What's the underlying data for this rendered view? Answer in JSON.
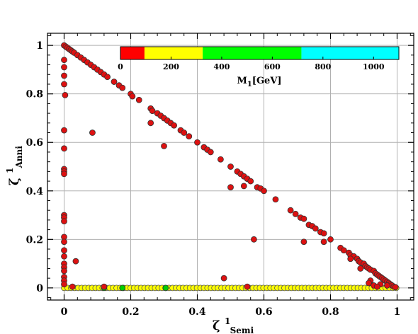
{
  "chart_data": {
    "type": "scatter",
    "xlabel": {
      "main": "ζ",
      "sup": "1",
      "sub": "Semi"
    },
    "ylabel": {
      "main": "ζ",
      "sup": "1",
      "sub": "Anni"
    },
    "xlim": [
      -0.05,
      1.05
    ],
    "ylim": [
      -0.05,
      1.05
    ],
    "xticks": [
      0,
      0.2,
      0.4,
      0.6,
      0.8,
      1
    ],
    "xtick_labels": [
      "0",
      "0.2",
      "0.4",
      "0.6",
      "0.8",
      "1"
    ],
    "yticks": [
      0,
      0.2,
      0.4,
      0.6,
      0.8,
      1
    ],
    "ytick_labels": [
      "0",
      "0.2",
      "0.4",
      "0.6",
      "0.8",
      "1"
    ],
    "grid": true,
    "colorbar": {
      "label": {
        "main": "M",
        "sub": "1",
        "suffix": "[GeV]"
      },
      "range": [
        0,
        1100
      ],
      "ticks": [
        0,
        200,
        400,
        600,
        800,
        1000
      ],
      "tick_labels": [
        "0",
        "200",
        "400",
        "600",
        "800",
        "1000"
      ],
      "bins": [
        {
          "from": 0,
          "to": 95,
          "color": "#ff0000"
        },
        {
          "from": 95,
          "to": 325,
          "color": "#ffff00"
        },
        {
          "from": 325,
          "to": 715,
          "color": "#00ff00"
        },
        {
          "from": 715,
          "to": 1100,
          "color": "#00ffff"
        }
      ]
    },
    "series": [
      {
        "marker_color": "#dd1111",
        "points": [
          [
            0,
            1
          ],
          [
            0.005,
            0.995
          ],
          [
            0.01,
            0.99
          ],
          [
            0.015,
            0.985
          ],
          [
            0.02,
            0.98
          ],
          [
            0.025,
            0.975
          ],
          [
            0.03,
            0.97
          ],
          [
            0.04,
            0.96
          ],
          [
            0.05,
            0.95
          ],
          [
            0.06,
            0.94
          ],
          [
            0.07,
            0.93
          ],
          [
            0.08,
            0.92
          ],
          [
            0.09,
            0.91
          ],
          [
            0.1,
            0.9
          ],
          [
            0.11,
            0.89
          ],
          [
            0.12,
            0.88
          ],
          [
            0.13,
            0.87
          ],
          [
            0.15,
            0.85
          ],
          [
            0.165,
            0.835
          ],
          [
            0.175,
            0.825
          ],
          [
            0.2,
            0.8
          ],
          [
            0.205,
            0.79
          ],
          [
            0.225,
            0.775
          ],
          [
            0.26,
            0.74
          ],
          [
            0.265,
            0.73
          ],
          [
            0.28,
            0.72
          ],
          [
            0.29,
            0.71
          ],
          [
            0.3,
            0.7
          ],
          [
            0.31,
            0.69
          ],
          [
            0.32,
            0.68
          ],
          [
            0.33,
            0.67
          ],
          [
            0.35,
            0.65
          ],
          [
            0.36,
            0.64
          ],
          [
            0.375,
            0.625
          ],
          [
            0.4,
            0.6
          ],
          [
            0.42,
            0.58
          ],
          [
            0.43,
            0.57
          ],
          [
            0.44,
            0.56
          ],
          [
            0.47,
            0.53
          ],
          [
            0.5,
            0.5
          ],
          [
            0.52,
            0.48
          ],
          [
            0.53,
            0.47
          ],
          [
            0.54,
            0.46
          ],
          [
            0.55,
            0.45
          ],
          [
            0.56,
            0.44
          ],
          [
            0.58,
            0.415
          ],
          [
            0.59,
            0.41
          ],
          [
            0.6,
            0.4
          ],
          [
            0.635,
            0.365
          ],
          [
            0.68,
            0.32
          ],
          [
            0.695,
            0.305
          ],
          [
            0.71,
            0.29
          ],
          [
            0.72,
            0.285
          ],
          [
            0.735,
            0.26
          ],
          [
            0.745,
            0.255
          ],
          [
            0.755,
            0.245
          ],
          [
            0.77,
            0.23
          ],
          [
            0.78,
            0.225
          ],
          [
            0.8,
            0.2
          ],
          [
            0.83,
            0.165
          ],
          [
            0.84,
            0.155
          ],
          [
            0.855,
            0.145
          ],
          [
            0.86,
            0.135
          ],
          [
            0.87,
            0.13
          ],
          [
            0.88,
            0.12
          ],
          [
            0.885,
            0.11
          ],
          [
            0.89,
            0.105
          ],
          [
            0.9,
            0.1
          ],
          [
            0.905,
            0.09
          ],
          [
            0.91,
            0.085
          ],
          [
            0.915,
            0.08
          ],
          [
            0.92,
            0.075
          ],
          [
            0.93,
            0.07
          ],
          [
            0.935,
            0.06
          ],
          [
            0.94,
            0.055
          ],
          [
            0.945,
            0.05
          ],
          [
            0.95,
            0.045
          ],
          [
            0.955,
            0.04
          ],
          [
            0.96,
            0.035
          ],
          [
            0.965,
            0.03
          ],
          [
            0.97,
            0.025
          ],
          [
            0.975,
            0.02
          ],
          [
            0.98,
            0.015
          ],
          [
            0.985,
            0.01
          ],
          [
            0.99,
            0.005
          ],
          [
            0.995,
            0.003
          ],
          [
            0,
            0.94
          ],
          [
            0,
            0.91
          ],
          [
            0,
            0.875
          ],
          [
            0,
            0.84
          ],
          [
            0.003,
            0.795
          ],
          [
            0,
            0.65
          ],
          [
            0,
            0.575
          ],
          [
            0,
            0.49
          ],
          [
            0,
            0.48
          ],
          [
            0,
            0.47
          ],
          [
            0,
            0.3
          ],
          [
            0,
            0.29
          ],
          [
            0,
            0.275
          ],
          [
            0,
            0.21
          ],
          [
            0,
            0.19
          ],
          [
            0,
            0.155
          ],
          [
            0,
            0.13
          ],
          [
            0,
            0.1
          ],
          [
            0,
            0.085
          ],
          [
            0,
            0.07
          ],
          [
            0,
            0.045
          ],
          [
            0,
            0.03
          ],
          [
            0,
            0.015
          ],
          [
            0.035,
            0.11
          ],
          [
            0.085,
            0.64
          ],
          [
            0.26,
            0.68
          ],
          [
            0.3,
            0.585
          ],
          [
            0.5,
            0.415
          ],
          [
            0.54,
            0.42
          ],
          [
            0.57,
            0.2
          ],
          [
            0.72,
            0.19
          ],
          [
            0.78,
            0.19
          ],
          [
            0.48,
            0.04
          ],
          [
            0.86,
            0.12
          ],
          [
            0.89,
            0.08
          ],
          [
            0.92,
            0.03
          ],
          [
            0.915,
            0.02
          ],
          [
            0.93,
            0.01
          ],
          [
            0.95,
            0.015
          ],
          [
            0.97,
            0.01
          ],
          [
            0.94,
            0.005
          ],
          [
            0.12,
            0.005
          ],
          [
            0.55,
            0.005
          ],
          [
            0.025,
            0.005
          ]
        ]
      },
      {
        "marker_color": "#ffff00",
        "points": "row along y = 0 from x = 0 to x = 1 (dense)"
      },
      {
        "marker_color": "#00cc00",
        "points": [
          [
            0.12,
            0.0
          ],
          [
            0.175,
            0.0
          ],
          [
            0.305,
            0.0
          ]
        ]
      }
    ]
  }
}
